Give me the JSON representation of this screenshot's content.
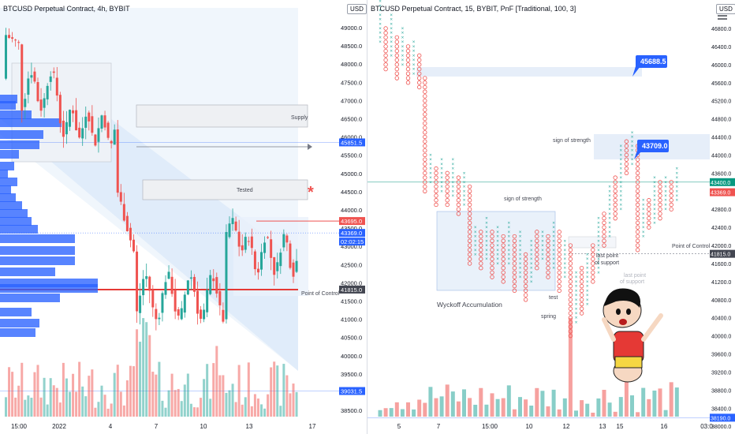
{
  "left_chart": {
    "title": "BTCUSD Perpetual Contract, 4h, BYBIT",
    "currency": "USD",
    "y_ticks": [
      "49000.0",
      "48500.0",
      "48000.0",
      "47500.0",
      "47000.0",
      "46500.0",
      "46000.0",
      "45500.0",
      "45000.0",
      "44500.0",
      "44000.0",
      "43500.0",
      "43000.0",
      "42500.0",
      "42000.0",
      "41500.0",
      "41000.0",
      "40500.0",
      "40000.0",
      "39500.0",
      "39000.0",
      "38500.0"
    ],
    "x_ticks": [
      "15:00",
      "2022",
      "4",
      "7",
      "10",
      "13",
      "17"
    ],
    "price_tags": [
      {
        "label": "45851.5",
        "color": "#2962ff"
      },
      {
        "label": "43695.0",
        "color": "#ef5350"
      },
      {
        "label": "43369.0",
        "color": "#2962ff"
      },
      {
        "label": "02:02:15",
        "color": "#2962ff"
      },
      {
        "label": "41815.0",
        "color": "#434651"
      },
      {
        "label": "39031.5",
        "color": "#2962ff"
      }
    ],
    "annotations": {
      "supply": "Supply",
      "tested": "Tested",
      "poc": "Point of Control",
      "asterisk": "*"
    }
  },
  "right_chart": {
    "title": "BTCUSD Perpetual Contract, 15, BYBIT, PnF [Traditional, 100, 3]",
    "currency": "USD",
    "y_ticks": [
      "46800.0",
      "46400.0",
      "46000.0",
      "45600.0",
      "45200.0",
      "44800.0",
      "44400.0",
      "44000.0",
      "43600.0",
      "43200.0",
      "42800.0",
      "42400.0",
      "42000.0",
      "41600.0",
      "41200.0",
      "40800.0",
      "40400.0",
      "40000.0",
      "39600.0",
      "39200.0",
      "38800.0",
      "38400.0",
      "38000.0"
    ],
    "x_ticks": [
      "5",
      "7",
      "15:00",
      "10",
      "12",
      "13",
      "15",
      "16",
      "03:0"
    ],
    "price_tags": [
      {
        "label": "43400.0",
        "color": "#089981"
      },
      {
        "label": "43369.0",
        "color": "#ef5350"
      },
      {
        "label": "41815.0",
        "color": "#434651"
      },
      {
        "label": "38190.0",
        "color": "#2962ff"
      }
    ],
    "callouts": [
      "45688.5",
      "43709.0"
    ],
    "annotations": {
      "sos1": "sign of strength",
      "sos2": "sign of strength",
      "wyckoff": "Wyckoff Accumulation",
      "test": "test",
      "spring": "spring",
      "lps": "last point",
      "lps2": "of support",
      "lps_ghost": "last point",
      "lps_ghost2": "of support",
      "poc": "Point of Control"
    }
  },
  "colors": {
    "up": "#26a69a",
    "down": "#ef5350",
    "blue": "#2962ff",
    "zone": "#dbe7f7"
  },
  "icons": {
    "menu": "hamburger-menu-icon",
    "character": "cartoon-character-sticker"
  }
}
